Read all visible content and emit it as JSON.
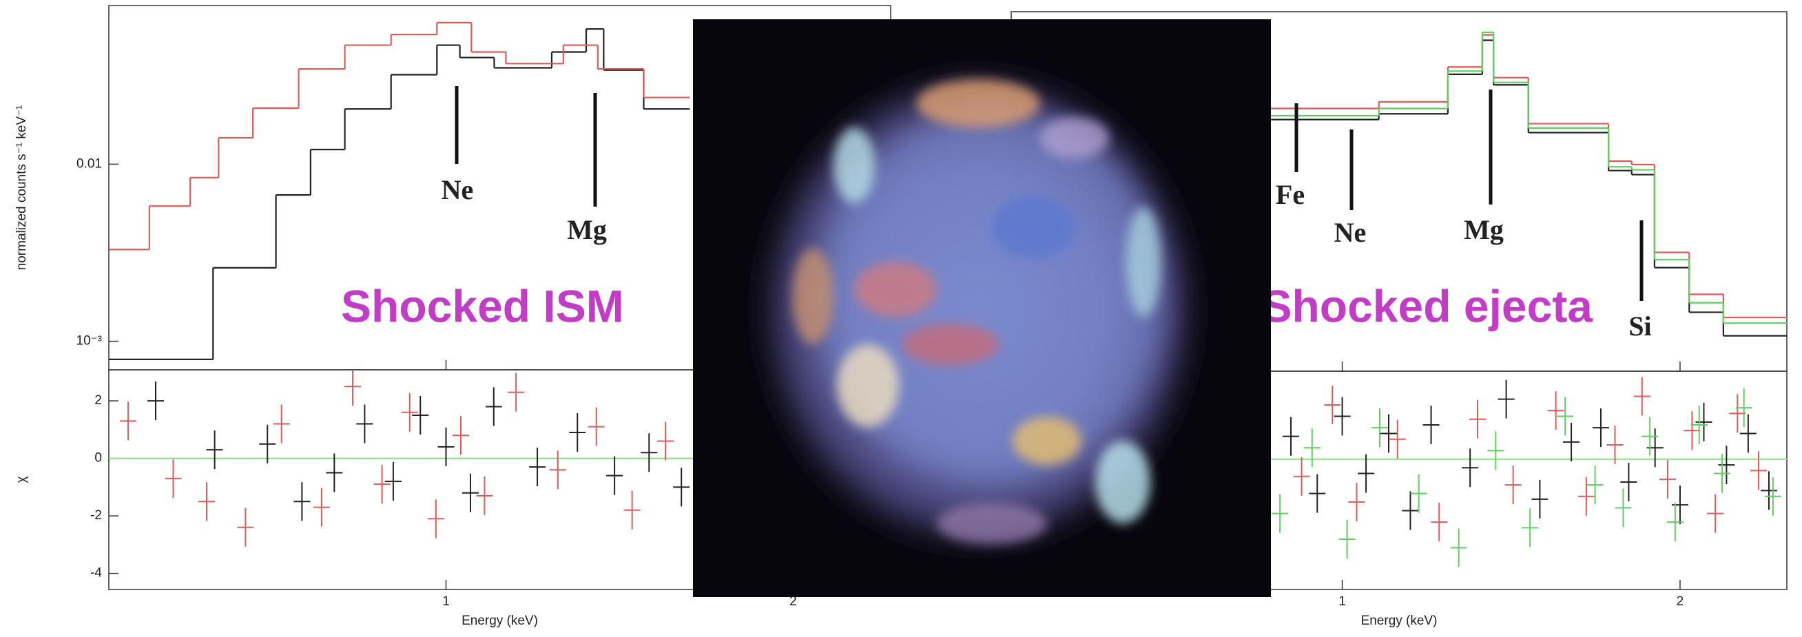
{
  "chart_data": [
    {
      "type": "step",
      "xlog": true,
      "ylog": true,
      "ylabel": "normalized counts s⁻¹ keV⁻¹",
      "xlabel": "Energy (keV)",
      "xlim": [
        0.51,
        2.43
      ],
      "xticks": [
        1,
        2
      ],
      "ylim": [
        0.00069,
        0.0787
      ],
      "yticks": [
        0.01,
        {
          "value": 0.001,
          "label": "10⁻³"
        }
      ],
      "series": [
        {
          "color": "#222222",
          "x": [
            0.51,
            0.628,
            0.712,
            0.763,
            0.817,
            0.896,
            0.982,
            1.028,
            1.101,
            1.235,
            1.323,
            1.37,
            1.484,
            1.627
          ],
          "values": [
            0.00079,
            0.0026,
            0.0067,
            0.0121,
            0.0205,
            0.032,
            0.047,
            0.04,
            0.035,
            0.043,
            0.058,
            0.034,
            0.0205,
            0.0205
          ]
        },
        {
          "color": "#e05a5a",
          "x": [
            0.51,
            0.553,
            0.6,
            0.635,
            0.68,
            0.745,
            0.817,
            0.896,
            0.982,
            1.052,
            1.127,
            1.264,
            1.354,
            1.484,
            1.627
          ],
          "values": [
            0.0033,
            0.0058,
            0.0084,
            0.0141,
            0.0207,
            0.0345,
            0.047,
            0.054,
            0.063,
            0.043,
            0.037,
            0.047,
            0.0345,
            0.0238,
            0.0238
          ]
        }
      ],
      "residuals": {
        "ylabel": "χ",
        "ylim": [
          -4.56,
          3.08
        ],
        "yticks": [
          2,
          0,
          -2,
          -4
        ],
        "zero_color": "#86e086",
        "series": [
          {
            "color": "#222222",
            "x": [
              0.56,
              0.63,
              0.7,
              0.75,
              0.8,
              0.85,
              0.9,
              0.95,
              1.0,
              1.05,
              1.1,
              1.2,
              1.3,
              1.4,
              1.5,
              1.6
            ],
            "values": [
              2,
              0.3,
              0.5,
              -1.5,
              -0.5,
              1.2,
              -0.8,
              1.5,
              0.4,
              -1.2,
              1.8,
              -0.3,
              0.9,
              -0.6,
              0.2,
              -1
            ]
          },
          {
            "color": "#e05a5a",
            "x": [
              0.53,
              0.58,
              0.62,
              0.67,
              0.72,
              0.78,
              0.83,
              0.88,
              0.93,
              0.98,
              1.03,
              1.08,
              1.15,
              1.25,
              1.35,
              1.45,
              1.55
            ],
            "values": [
              1.3,
              -0.7,
              -1.5,
              -2.4,
              1.2,
              -1.7,
              2.5,
              -0.9,
              1.6,
              -2.1,
              0.8,
              -1.3,
              2.3,
              -0.4,
              1.1,
              -1.8,
              0.6
            ]
          }
        ]
      },
      "annotations": [
        "Ne",
        "Mg"
      ],
      "label": "Shocked ISM",
      "label_color": "#c23cc6"
    },
    {
      "type": "step",
      "xlog": true,
      "ylog": true,
      "xlabel": "Energy (keV)",
      "xlim": [
        0.507,
        2.49
      ],
      "xticks": [
        1,
        2
      ],
      "ylim": [
        0.00069,
        0.0787
      ],
      "series": [
        {
          "color": "#222222",
          "x": [
            0.864,
            1.078,
            1.242,
            1.333,
            1.364,
            1.465,
            1.727,
            1.811,
            1.898,
            2.038,
            2.186,
            2.49
          ],
          "values": [
            0.019,
            0.0205,
            0.0345,
            0.054,
            0.03,
            0.016,
            0.0097,
            0.0092,
            0.0027,
            0.0015,
            0.0011,
            0.0011
          ]
        },
        {
          "color": "#e05a5a",
          "x": [
            0.864,
            1.078,
            1.242,
            1.333,
            1.364,
            1.465,
            1.727,
            1.811,
            1.898,
            2.038,
            2.186,
            2.49
          ],
          "values": [
            0.022,
            0.024,
            0.038,
            0.058,
            0.033,
            0.018,
            0.011,
            0.0105,
            0.0033,
            0.0019,
            0.0014,
            0.0014
          ]
        },
        {
          "color": "#5fcf5f",
          "x": [
            0.864,
            1.078,
            1.242,
            1.333,
            1.364,
            1.465,
            1.727,
            1.811,
            1.898,
            2.038,
            2.186,
            2.49
          ],
          "values": [
            0.02,
            0.022,
            0.036,
            0.06,
            0.031,
            0.017,
            0.0102,
            0.0098,
            0.003,
            0.0017,
            0.0013,
            0.0013
          ]
        }
      ],
      "residuals": {
        "ylim": [
          -4.56,
          3.08
        ],
        "zero_color": "#86e086",
        "series": [
          {
            "color": "#222222",
            "x": [
              0.9,
              0.95,
              1.0,
              1.05,
              1.1,
              1.15,
              1.2,
              1.3,
              1.4,
              1.5,
              1.6,
              1.7,
              1.8,
              1.9,
              2.0,
              2.1,
              2.2,
              2.3,
              2.4
            ],
            "values": [
              0.8,
              -1.2,
              1.5,
              -0.5,
              0.9,
              -1.8,
              1.2,
              -0.3,
              2.1,
              -1.4,
              0.6,
              1.1,
              -0.8,
              0.4,
              -1.6,
              1.3,
              -0.2,
              0.9,
              -1.1
            ]
          },
          {
            "color": "#e05a5a",
            "x": [
              0.92,
              0.98,
              1.03,
              1.12,
              1.22,
              1.32,
              1.42,
              1.55,
              1.65,
              1.75,
              1.85,
              1.95,
              2.05,
              2.15,
              2.25,
              2.35
            ],
            "values": [
              -0.6,
              1.9,
              -1.5,
              0.7,
              -2.2,
              1.4,
              -0.9,
              1.7,
              -1.3,
              0.5,
              2.2,
              -0.7,
              1.0,
              -1.9,
              1.6,
              -0.4
            ]
          },
          {
            "color": "#5fcf5f",
            "x": [
              0.88,
              0.94,
              1.01,
              1.08,
              1.17,
              1.27,
              1.37,
              1.47,
              1.58,
              1.68,
              1.78,
              1.88,
              1.98,
              2.08,
              2.18,
              2.28,
              2.42
            ],
            "values": [
              -1.9,
              0.4,
              -2.8,
              1.1,
              -1.2,
              -3.1,
              0.3,
              -2.4,
              1.5,
              -0.9,
              -1.7,
              0.8,
              -2.2,
              1.2,
              -0.5,
              1.8,
              -1.3
            ]
          }
        ]
      },
      "annotations": [
        "Fe",
        "Ne",
        "Mg",
        "Si"
      ],
      "label": "Shocked ejecta",
      "label_color": "#c23cc6"
    }
  ]
}
